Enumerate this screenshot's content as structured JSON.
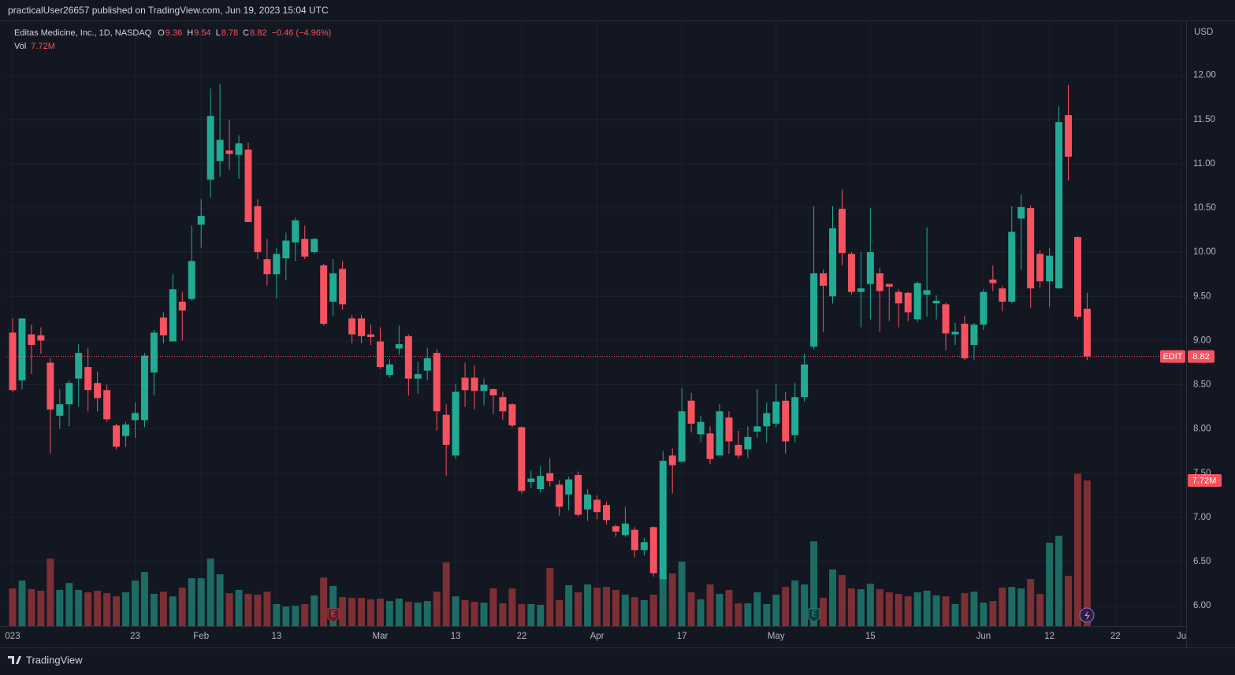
{
  "header": {
    "title": "practicalUser26657 published on TradingView.com, Jun 19, 2023 15:04 UTC"
  },
  "footer": {
    "brand": "TradingView"
  },
  "chart_data": {
    "type": "candlestick",
    "legend": {
      "name": "Editas Medicine, Inc., 1D, NASDAQ",
      "o": "O",
      "h": "H",
      "l": "L",
      "c": "C",
      "change": "−0.46 (−4.96%)",
      "vol": "Vol"
    },
    "currency": "USD",
    "symbol": "EDIT",
    "up_color": "#22ab94",
    "down_color": "#f7525f",
    "volume_up_color": "#1d6b62",
    "volume_down_color": "#7c2f34",
    "grid": true,
    "events": [
      {
        "label": "E"
      },
      {
        "label": "E"
      }
    ],
    "open": [
      9.09,
      8.55,
      9.07,
      9.06,
      8.75,
      8.15,
      8.28,
      8.57,
      8.7,
      8.52,
      8.44,
      8.04,
      7.92,
      8.1,
      8.1,
      8.64,
      9.26,
      8.99,
      9.44,
      9.47,
      10.31,
      10.82,
      11.03,
      11.15,
      11.1,
      11.16,
      10.52,
      9.92,
      9.75,
      9.93,
      10.11,
      10.15,
      10.0,
      9.85,
      9.44,
      9.81,
      9.25,
      9.25,
      9.07,
      8.99,
      8.61,
      8.91,
      9.05,
      8.57,
      8.66,
      8.86,
      8.16,
      7.7,
      8.58,
      8.58,
      8.43,
      8.45,
      8.36,
      8.28,
      8.02,
      7.4,
      7.32,
      7.5,
      7.37,
      7.26,
      7.48,
      7.09,
      7.2,
      7.14,
      6.9,
      6.8,
      6.86,
      6.63,
      6.89,
      6.3,
      7.7,
      7.63,
      8.32,
      7.94,
      7.95,
      7.7,
      8.13,
      7.82,
      7.77,
      7.97,
      8.03,
      8.06,
      8.32,
      7.93,
      8.36,
      8.93,
      9.76,
      9.5,
      10.49,
      9.98,
      9.55,
      9.64,
      9.76,
      9.64,
      9.55,
      9.54,
      9.24,
      9.52,
      9.42,
      9.41,
      9.07,
      9.19,
      8.95,
      9.18,
      9.69,
      9.59,
      9.44,
      10.38,
      10.5,
      9.98,
      9.67,
      9.59,
      11.55,
      10.17,
      9.36
    ],
    "high": [
      9.25,
      9.25,
      9.18,
      9.15,
      8.8,
      8.45,
      8.55,
      8.96,
      8.92,
      8.65,
      8.5,
      8.06,
      8.08,
      8.3,
      8.86,
      9.12,
      9.32,
      9.75,
      9.55,
      10.3,
      10.6,
      11.85,
      11.9,
      11.5,
      11.32,
      11.24,
      10.6,
      10.15,
      10.05,
      10.22,
      10.39,
      10.3,
      10.16,
      9.87,
      9.92,
      9.9,
      9.29,
      9.29,
      9.18,
      9.15,
      8.79,
      9.17,
      9.07,
      8.76,
      8.92,
      8.9,
      8.28,
      8.51,
      8.75,
      8.72,
      8.57,
      8.46,
      8.42,
      8.29,
      8.03,
      7.53,
      7.58,
      7.67,
      7.42,
      7.46,
      7.52,
      7.32,
      7.25,
      7.18,
      6.92,
      7.12,
      6.89,
      6.77,
      6.9,
      7.75,
      7.78,
      8.46,
      8.41,
      8.15,
      8.03,
      8.28,
      8.2,
      7.98,
      8.03,
      8.45,
      8.3,
      8.51,
      8.42,
      8.52,
      8.85,
      10.52,
      9.8,
      10.52,
      10.71,
      10.0,
      10.0,
      10.5,
      9.82,
      9.64,
      9.58,
      9.55,
      9.67,
      10.28,
      9.51,
      9.43,
      9.2,
      9.28,
      9.2,
      9.58,
      9.85,
      9.62,
      10.52,
      10.65,
      10.53,
      10.02,
      10.05,
      11.65,
      11.89,
      10.18,
      9.54
    ],
    "low": [
      8.42,
      8.45,
      8.62,
      8.85,
      7.72,
      8.0,
      8.03,
      8.25,
      8.2,
      8.2,
      8.08,
      7.77,
      7.8,
      7.9,
      8.02,
      8.38,
      8.97,
      8.99,
      9.0,
      9.45,
      10.05,
      10.62,
      10.85,
      10.93,
      10.83,
      10.34,
      9.92,
      9.62,
      9.48,
      9.68,
      9.9,
      9.92,
      9.98,
      9.17,
      9.28,
      9.35,
      8.97,
      8.97,
      8.95,
      8.68,
      8.58,
      8.84,
      8.38,
      8.4,
      8.55,
      7.98,
      7.47,
      7.66,
      8.25,
      8.22,
      8.27,
      8.17,
      8.1,
      8.02,
      7.27,
      7.33,
      7.28,
      7.35,
      7.02,
      7.08,
      7.01,
      6.96,
      6.98,
      6.92,
      6.78,
      6.78,
      6.55,
      6.57,
      6.33,
      6.3,
      7.27,
      7.63,
      7.96,
      7.85,
      7.6,
      7.7,
      7.72,
      7.67,
      7.67,
      7.9,
      7.85,
      8.02,
      7.72,
      7.85,
      8.31,
      8.9,
      9.1,
      9.42,
      9.85,
      9.52,
      9.15,
      9.24,
      9.1,
      9.22,
      9.15,
      9.22,
      9.21,
      9.27,
      9.24,
      8.89,
      8.95,
      8.78,
      8.78,
      9.12,
      9.56,
      9.33,
      9.42,
      9.8,
      9.37,
      9.6,
      9.38,
      9.59,
      10.81,
      9.24,
      8.78
    ],
    "close": [
      8.44,
      9.25,
      8.95,
      9.0,
      8.22,
      8.28,
      8.52,
      8.86,
      8.44,
      8.35,
      8.11,
      7.8,
      8.05,
      8.18,
      8.83,
      9.09,
      9.06,
      9.58,
      9.34,
      9.9,
      10.41,
      11.54,
      11.27,
      11.11,
      11.23,
      10.34,
      10.0,
      9.75,
      9.98,
      10.13,
      10.36,
      9.95,
      10.15,
      9.19,
      9.76,
      9.41,
      9.07,
      9.05,
      9.04,
      8.7,
      8.73,
      8.96,
      8.57,
      8.62,
      8.8,
      8.2,
      7.82,
      8.42,
      8.44,
      8.43,
      8.5,
      8.38,
      8.2,
      8.04,
      7.3,
      7.44,
      7.47,
      7.41,
      7.12,
      7.43,
      7.03,
      7.26,
      7.06,
      6.97,
      6.84,
      6.93,
      6.63,
      6.72,
      6.37,
      7.64,
      7.59,
      8.2,
      8.06,
      8.08,
      7.66,
      8.2,
      7.86,
      7.7,
      7.91,
      8.03,
      8.18,
      8.31,
      7.86,
      8.36,
      8.73,
      9.76,
      9.62,
      10.27,
      9.99,
      9.55,
      9.59,
      10.0,
      9.56,
      9.61,
      9.42,
      9.32,
      9.65,
      9.57,
      9.45,
      9.08,
      9.1,
      8.8,
      9.18,
      9.55,
      9.65,
      9.44,
      10.23,
      10.51,
      9.59,
      9.67,
      9.96,
      11.47,
      11.08,
      9.27,
      8.82
    ],
    "volume": [
      2.0,
      2.42,
      1.96,
      1.88,
      3.58,
      1.92,
      2.29,
      1.92,
      1.79,
      1.88,
      1.75,
      1.58,
      1.79,
      2.42,
      2.88,
      1.71,
      1.83,
      1.58,
      2.04,
      2.54,
      2.54,
      3.58,
      2.75,
      1.75,
      1.92,
      1.71,
      1.67,
      1.83,
      1.17,
      1.04,
      1.08,
      1.17,
      1.63,
      2.58,
      2.13,
      1.54,
      1.5,
      1.5,
      1.42,
      1.46,
      1.33,
      1.46,
      1.29,
      1.25,
      1.33,
      1.83,
      3.38,
      1.58,
      1.38,
      1.29,
      1.25,
      2.0,
      1.21,
      2.0,
      1.17,
      1.17,
      1.13,
      3.08,
      1.38,
      2.17,
      1.79,
      2.21,
      2.04,
      2.08,
      1.92,
      1.67,
      1.54,
      1.38,
      1.67,
      2.71,
      2.79,
      3.42,
      1.79,
      1.42,
      2.21,
      1.71,
      1.92,
      1.21,
      1.21,
      1.79,
      1.17,
      1.67,
      2.08,
      2.42,
      2.21,
      4.5,
      1.5,
      3.0,
      2.71,
      2.0,
      1.96,
      2.25,
      1.96,
      1.79,
      1.71,
      1.58,
      1.79,
      1.88,
      1.63,
      1.58,
      1.17,
      1.75,
      1.83,
      1.25,
      1.33,
      2.04,
      2.08,
      2.0,
      2.5,
      1.71,
      4.42,
      4.79,
      2.67,
      8.08,
      7.72
    ],
    "last_volume_label": "7.72M",
    "volume_ylim": [
      0,
      32.1
    ],
    "xlim": [
      -0.67,
      124.5
    ],
    "xticks": [
      {
        "value": 0,
        "label": "023"
      },
      {
        "value": 13,
        "label": "23"
      },
      {
        "value": 20,
        "label": "Feb"
      },
      {
        "value": 28,
        "label": "13"
      },
      {
        "value": 39,
        "label": "Mar"
      },
      {
        "value": 47,
        "label": "13"
      },
      {
        "value": 54,
        "label": "22"
      },
      {
        "value": 62,
        "label": "Apr"
      },
      {
        "value": 71,
        "label": "17"
      },
      {
        "value": 81,
        "label": "May"
      },
      {
        "value": 91,
        "label": "15"
      },
      {
        "value": 103,
        "label": "Jun"
      },
      {
        "value": 110,
        "label": "12"
      },
      {
        "value": 117,
        "label": "22"
      },
      {
        "value": 124,
        "label": "Ju"
      }
    ],
    "ylim": [
      5.77,
      12.62
    ],
    "yticks": [
      {
        "value": 6,
        "label": "6.00"
      },
      {
        "value": 6.5,
        "label": "6.50"
      },
      {
        "value": 7,
        "label": "7.00"
      },
      {
        "value": 7.5,
        "label": "7.50"
      },
      {
        "value": 8,
        "label": "8.00"
      },
      {
        "value": 8.5,
        "label": "8.50"
      },
      {
        "value": 9,
        "label": "9.00"
      },
      {
        "value": 9.5,
        "label": "9.50"
      },
      {
        "value": 10,
        "label": "10.00"
      },
      {
        "value": 10.5,
        "label": "10.50"
      },
      {
        "value": 11,
        "label": "11.00"
      },
      {
        "value": 11.5,
        "label": "11.50"
      },
      {
        "value": 12,
        "label": "12.00"
      }
    ]
  }
}
